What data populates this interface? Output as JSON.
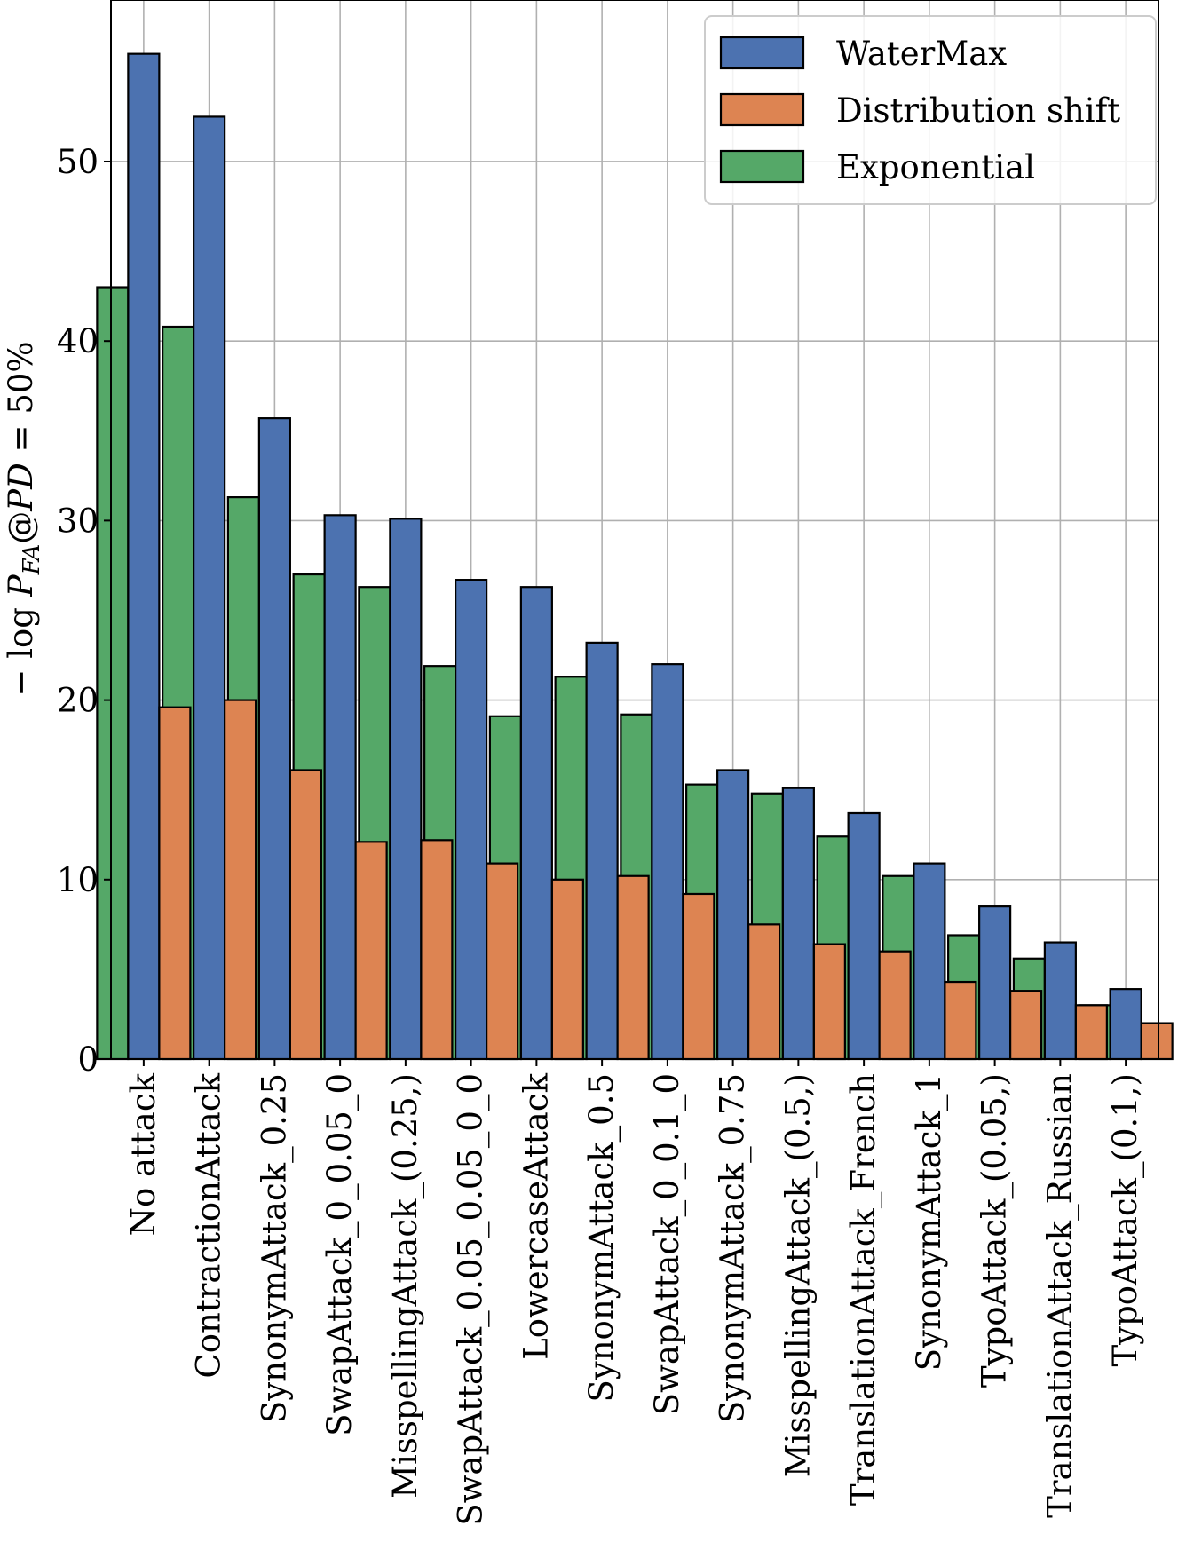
{
  "chart_data": {
    "type": "bar",
    "title": "",
    "xlabel": "",
    "ylabel": "− log P_FA@PD = 50%",
    "ylabel_parts": {
      "prefix": "− log ",
      "p": "P",
      "sub": "FA",
      "at": "@",
      "pd": "PD",
      "suffix": " = 50%"
    },
    "ylim": [
      0,
      59
    ],
    "yticks": [
      0,
      10,
      20,
      30,
      40,
      50
    ],
    "grid": true,
    "legend_position": "top-right",
    "categories": [
      "No attack",
      "ContractionAttack",
      "SynonymAttack_0.25",
      "SwapAttack_0_0.05_0",
      "MisspellingAttack_(0.25,)",
      "SwapAttack_0.05_0.05_0_0",
      "LowercaseAttack",
      "SynonymAttack_0.5",
      "SwapAttack_0_0.1_0",
      "SynonymAttack_0.75",
      "MisspellingAttack_(0.5,)",
      "TranslationAttack_French",
      "SynonymAttack_1",
      "TypoAttack_(0.05,)",
      "TranslationAttack_Russian",
      "TypoAttack_(0.1,)"
    ],
    "series": [
      {
        "name": "Exponential",
        "color": "#55a868",
        "values": [
          43,
          40.8,
          31.3,
          27,
          26.3,
          21.9,
          19.1,
          21.3,
          19.2,
          15.3,
          14.8,
          12.4,
          10.2,
          6.9,
          5.6,
          3
        ]
      },
      {
        "name": "WaterMax",
        "color": "#4c72b0",
        "values": [
          56,
          52.5,
          35.7,
          30.3,
          30.1,
          26.7,
          26.3,
          23.2,
          22,
          16.1,
          15.1,
          13.7,
          10.9,
          8.5,
          6.5,
          3.9
        ]
      },
      {
        "name": "Distribution shift",
        "color": "#dd8452",
        "values": [
          19.6,
          20,
          16.1,
          12.1,
          12.2,
          10.9,
          10,
          10.2,
          9.2,
          7.5,
          6.4,
          6,
          4.3,
          3.8,
          3,
          2
        ]
      }
    ],
    "legend_order": [
      "WaterMax",
      "Distribution shift",
      "Exponential"
    ]
  }
}
